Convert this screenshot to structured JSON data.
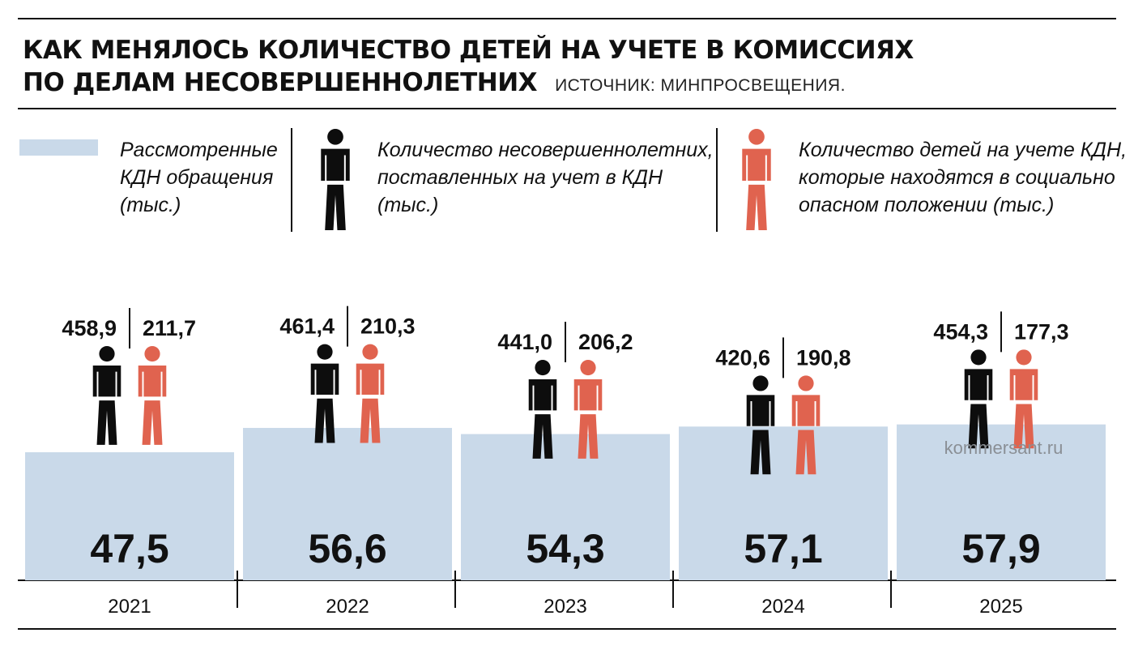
{
  "header": {
    "title_line1": "КАК МЕНЯЛОСЬ КОЛИЧЕСТВО ДЕТЕЙ НА УЧЕТЕ В КОМИССИЯХ",
    "title_line2": "ПО ДЕЛАМ НЕСОВЕРШЕННОЛЕТНИХ",
    "source": "ИСТОЧНИК: МИНПРОСВЕЩЕНИЯ."
  },
  "legend": {
    "appeals": {
      "line1": "Рассмотренные",
      "line2": "КДН обращения",
      "line3": "(тыс.)",
      "icon": "blue-bar-swatch"
    },
    "registered": {
      "line1": "Количество несовершеннолетних,",
      "line2": "поставленных на учет в КДН",
      "line3": "(тыс.)",
      "icon": "black-person-icon"
    },
    "dangerous": {
      "line1": "Количество детей на учете КДН,",
      "line2": "которые находятся в социально",
      "line3": "опасном положении (тыс.)",
      "icon": "red-person-icon"
    }
  },
  "watermark": "kommersant.ru",
  "colors": {
    "bar": "#c9d9e9",
    "black_figure": "#0d0d0d",
    "red_figure": "#e0634f",
    "text": "#111111"
  },
  "chart_data": {
    "type": "bar",
    "categories": [
      "2021",
      "2022",
      "2023",
      "2024",
      "2025"
    ],
    "series": [
      {
        "name": "Рассмотренные КДН обращения (тыс.)",
        "values": [
          47.5,
          56.6,
          54.3,
          57.1,
          57.9
        ],
        "labels": [
          "47,5",
          "56,6",
          "54,3",
          "57,1",
          "57,9"
        ]
      },
      {
        "name": "Количество несовершеннолетних, поставленных на учет в КДН (тыс.)",
        "values": [
          458.9,
          461.4,
          441.0,
          420.6,
          454.3
        ],
        "labels": [
          "458,9",
          "461,4",
          "441,0",
          "420,6",
          "454,3"
        ]
      },
      {
        "name": "Количество детей на учете КДН, которые находятся в социально опасном положении (тыс.)",
        "values": [
          211.7,
          210.3,
          206.2,
          190.8,
          177.3
        ],
        "labels": [
          "211,7",
          "210,3",
          "206,2",
          "190,8",
          "177,3"
        ]
      }
    ],
    "title": "КАК МЕНЯЛОСЬ КОЛИЧЕСТВО ДЕТЕЙ НА УЧЕТЕ В КОМИССИЯХ ПО ДЕЛАМ НЕСОВЕРШЕННОЛЕТНИХ",
    "xlabel": "",
    "ylabel": "",
    "grid": false,
    "legend_position": "top"
  }
}
